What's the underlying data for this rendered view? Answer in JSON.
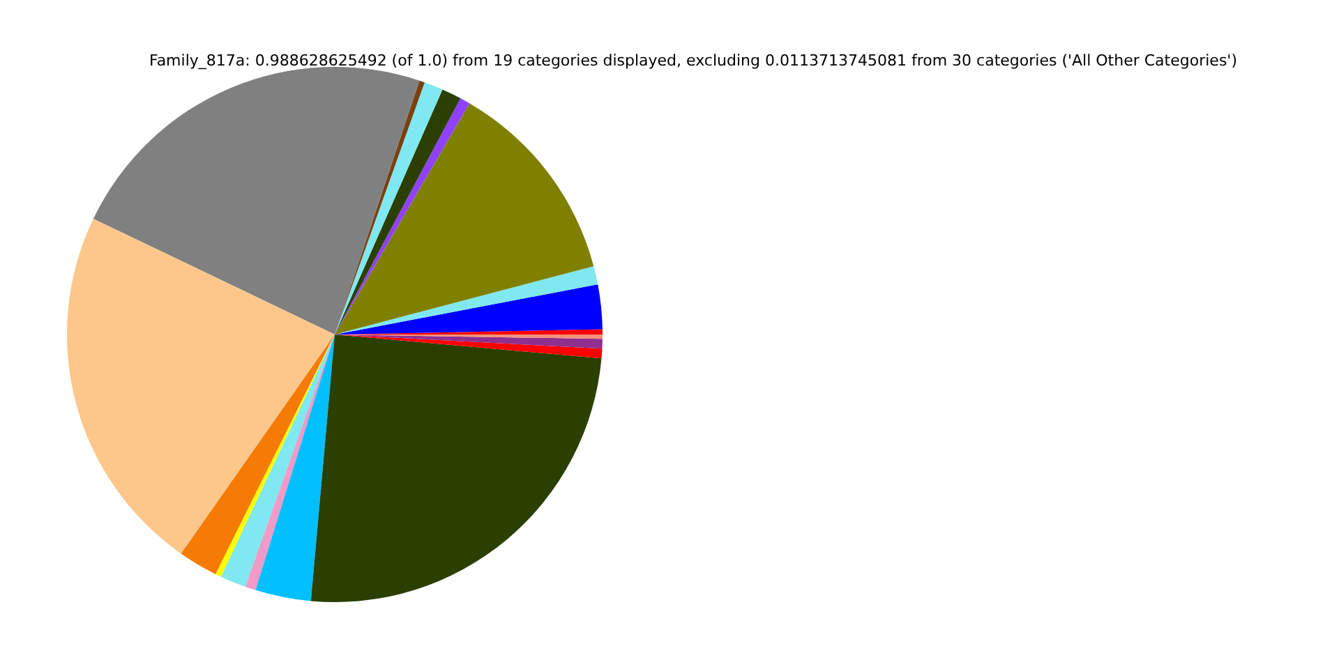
{
  "chart_data": {
    "type": "pie",
    "title": "Family_817a: 0.988628625492 (of 1.0) from 19 categories displayed, excluding 0.0113713745081 from 30 categories ('All Other Categories')",
    "categories": [
      null,
      null,
      null,
      null,
      null,
      null,
      null,
      null,
      null,
      null,
      null,
      null,
      null,
      null,
      null,
      null,
      null,
      null,
      null
    ],
    "values": [
      0.31,
      2.69,
      1.11,
      12.5,
      0.61,
      1.19,
      1.14,
      0.33,
      23.0,
      22.39,
      2.39,
      0.36,
      1.56,
      0.64,
      3.36,
      25.0,
      0.58,
      0.58,
      0.26
    ],
    "colors": [
      "#ff0000",
      "#0000ff",
      "#7fe8f0",
      "#808000",
      "#9040ff",
      "#2b3f00",
      "#7fe8f0",
      "#7a4010",
      "#808080",
      "#fdc78b",
      "#f57b05",
      "#ffff00",
      "#7fe8f0",
      "#f29ac8",
      "#00bfff",
      "#2b3f00",
      "#ff0000",
      "#8f2f8f",
      "#f4917a"
    ]
  }
}
